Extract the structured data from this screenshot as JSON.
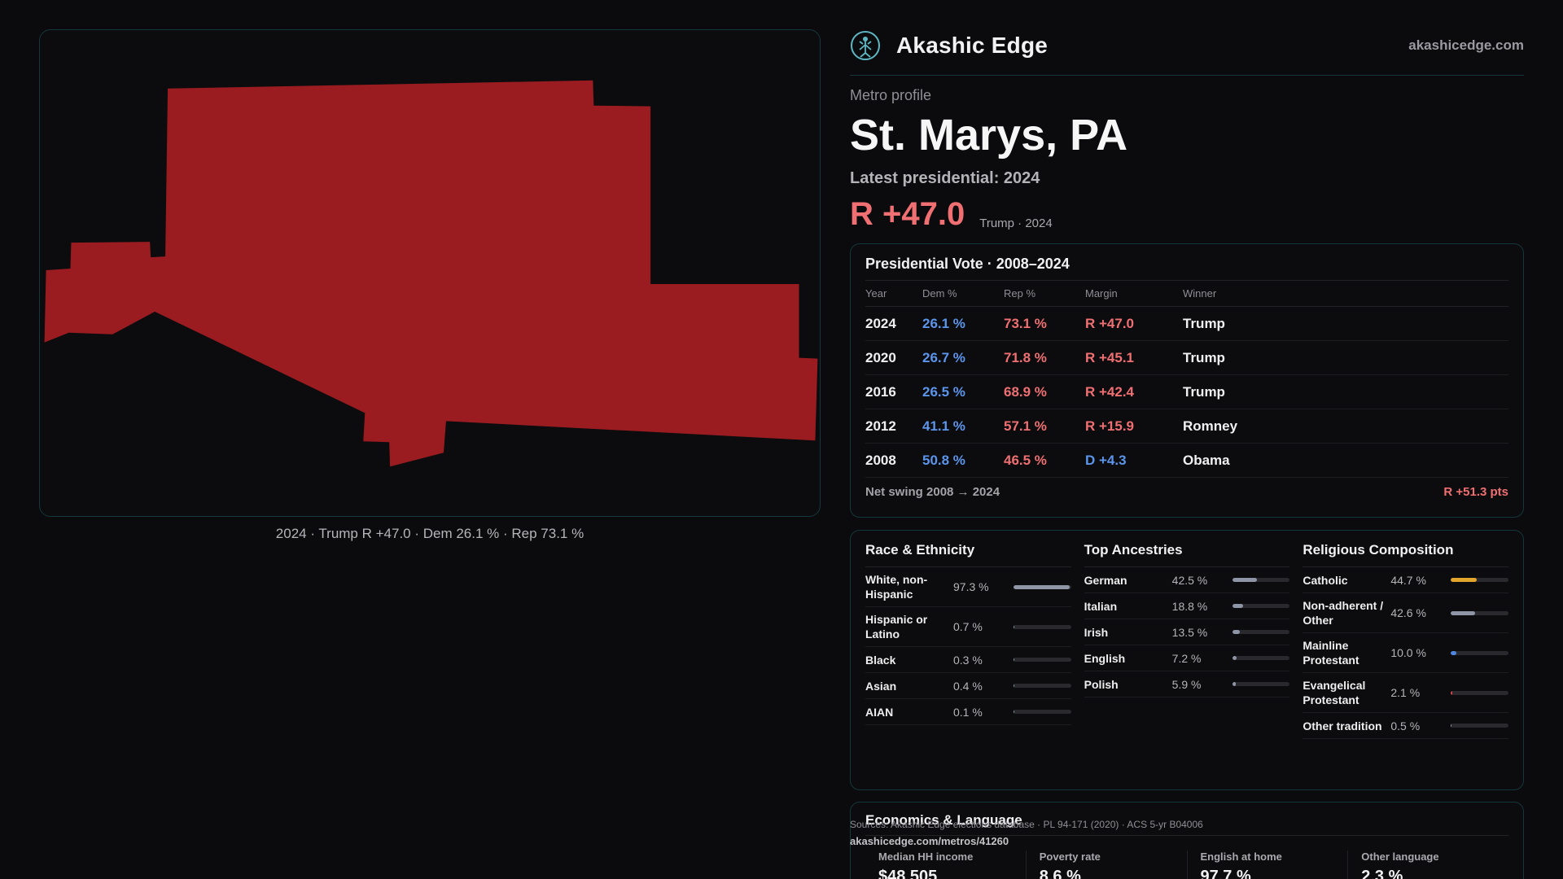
{
  "brand": {
    "name": "Akashic Edge",
    "url": "akashicedge.com",
    "logo": "tree-figure-icon"
  },
  "map": {
    "caption": "2024 · Trump R +47.0 · Dem 26.1 % · Rep 73.1 %",
    "fill_color": "#9b1c20"
  },
  "profile": {
    "eyebrow": "Metro profile",
    "title": "St. Marys, PA",
    "latest_label": "Latest presidential: 2024",
    "margin": "R +47.0",
    "margin_sub": "Trump · 2024"
  },
  "vote": {
    "title": "Presidential Vote · 2008–2024",
    "headers": [
      "Year",
      "Dem %",
      "Rep %",
      "Margin",
      "Winner"
    ],
    "rows": [
      {
        "year": "2024",
        "dem": "26.1 %",
        "rep": "73.1 %",
        "margin": "R +47.0",
        "party": "R",
        "winner": "Trump"
      },
      {
        "year": "2020",
        "dem": "26.7 %",
        "rep": "71.8 %",
        "margin": "R +45.1",
        "party": "R",
        "winner": "Trump"
      },
      {
        "year": "2016",
        "dem": "26.5 %",
        "rep": "68.9 %",
        "margin": "R +42.4",
        "party": "R",
        "winner": "Trump"
      },
      {
        "year": "2012",
        "dem": "41.1 %",
        "rep": "57.1 %",
        "margin": "R +15.9",
        "party": "R",
        "winner": "Romney"
      },
      {
        "year": "2008",
        "dem": "50.8 %",
        "rep": "46.5 %",
        "margin": "D +4.3",
        "party": "D",
        "winner": "Obama"
      }
    ],
    "swing_label": "Net swing 2008 → 2024",
    "swing_value": "R +51.3 pts"
  },
  "demographics": [
    {
      "title": "Race & Ethnicity",
      "rows": [
        {
          "label": "White, non-Hispanic",
          "value": "97.3 %",
          "fraction": 0.973,
          "color": "#8d95a6"
        },
        {
          "label": "Hispanic or Latino",
          "value": "0.7 %",
          "fraction": 0.007,
          "color": "#8d95a6"
        },
        {
          "label": "Black",
          "value": "0.3 %",
          "fraction": 0.003,
          "color": "#8d95a6"
        },
        {
          "label": "Asian",
          "value": "0.4 %",
          "fraction": 0.004,
          "color": "#8d95a6"
        },
        {
          "label": "AIAN",
          "value": "0.1 %",
          "fraction": 0.001,
          "color": "#8d95a6"
        }
      ]
    },
    {
      "title": "Top Ancestries",
      "rows": [
        {
          "label": "German",
          "value": "42.5 %",
          "fraction": 0.425,
          "color": "#8d95a6"
        },
        {
          "label": "Italian",
          "value": "18.8 %",
          "fraction": 0.188,
          "color": "#8d95a6"
        },
        {
          "label": "Irish",
          "value": "13.5 %",
          "fraction": 0.135,
          "color": "#8d95a6"
        },
        {
          "label": "English",
          "value": "7.2 %",
          "fraction": 0.072,
          "color": "#8d95a6"
        },
        {
          "label": "Polish",
          "value": "5.9 %",
          "fraction": 0.059,
          "color": "#8d95a6"
        }
      ]
    },
    {
      "title": "Religious Composition",
      "rows": [
        {
          "label": "Catholic",
          "value": "44.7 %",
          "fraction": 0.447,
          "color": "#e3a62c"
        },
        {
          "label": "Non-adherent / Other",
          "value": "42.6 %",
          "fraction": 0.426,
          "color": "#8d95a6"
        },
        {
          "label": "Mainline Protestant",
          "value": "10.0 %",
          "fraction": 0.1,
          "color": "#4f86e0"
        },
        {
          "label": "Evangelical Protestant",
          "value": "2.1 %",
          "fraction": 0.021,
          "color": "#d9434b"
        },
        {
          "label": "Other tradition",
          "value": "0.5 %",
          "fraction": 0.005,
          "color": "#8d95a6"
        }
      ]
    }
  ],
  "economics": {
    "title": "Economics & Language",
    "cells": [
      {
        "label": "Median HH income",
        "value": "$48,505"
      },
      {
        "label": "Poverty rate",
        "value": "8.6 %"
      },
      {
        "label": "English at home",
        "value": "97.7 %"
      },
      {
        "label": "Other language",
        "value": "2.3 %"
      }
    ]
  },
  "footer": {
    "sources": "Sources: Akashic Edge elections database · PL 94-171 (2020) · ACS 5-yr B04006",
    "url": "akashicedge.com/metros/41260"
  },
  "colors": {
    "rep": "#ef6f72",
    "dem": "#5b95ec",
    "accent_border": "#14373c"
  }
}
